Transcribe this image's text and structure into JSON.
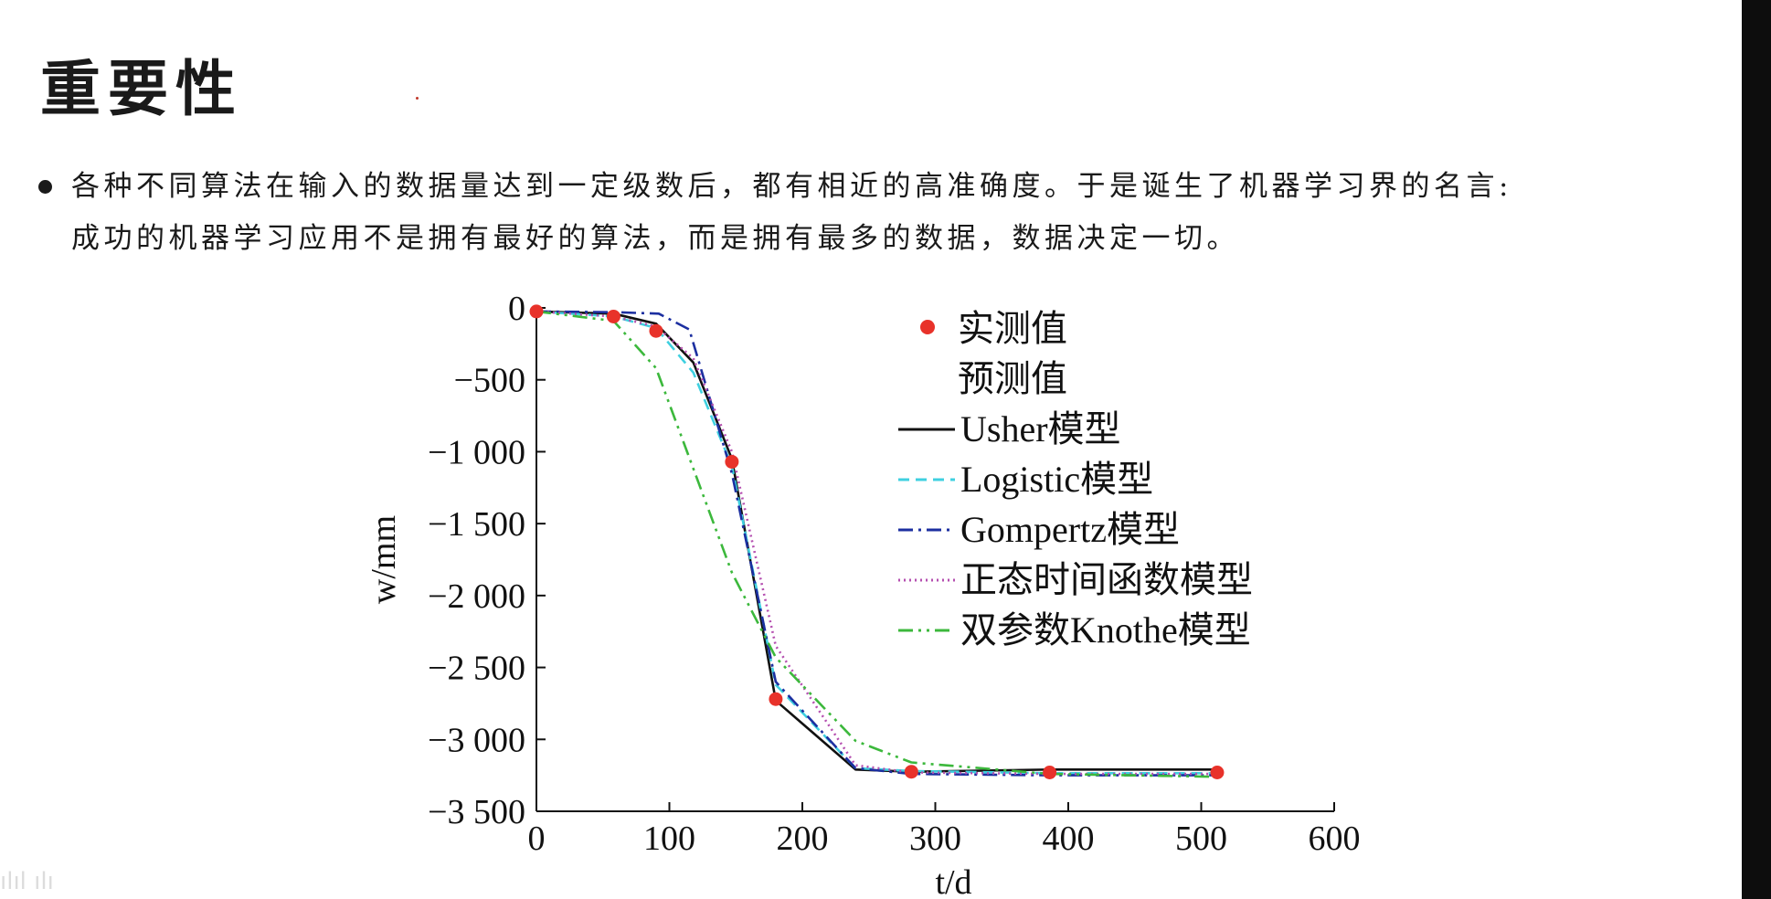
{
  "slide": {
    "title": "重要性",
    "bullet_line1": "各种不同算法在输入的数据量达到一定级数后，都有相近的高准确度。于是诞生了机器学习界的名言:",
    "bullet_line2": "成功的机器学习应用不是拥有最好的算法，而是拥有最多的数据，数据决定一切。"
  },
  "chart_data": {
    "type": "line",
    "xlabel": "t/d",
    "ylabel": "w/mm",
    "xlim": [
      0,
      600
    ],
    "ylim": [
      -3500,
      0
    ],
    "x_ticks": [
      0,
      100,
      200,
      300,
      400,
      500,
      600
    ],
    "y_ticks": [
      0,
      -500,
      -1000,
      -1500,
      -2000,
      -2500,
      -3000,
      -3500
    ],
    "x_tick_labels": [
      "0",
      "100",
      "200",
      "300",
      "400",
      "500",
      "600"
    ],
    "y_tick_labels": [
      "0",
      "−500",
      "−1 000",
      "−1 500",
      "−2 000",
      "−2 500",
      "−3 000",
      "−3 500"
    ],
    "grid": false,
    "legend_position": "top-right",
    "measured": {
      "name": "实测值",
      "color": "#e8322a",
      "x": [
        0,
        58,
        90,
        147,
        180,
        282,
        386,
        512
      ],
      "y": [
        -25,
        -60,
        -160,
        -1070,
        -2720,
        -3225,
        -3230,
        -3230
      ]
    },
    "predicted_header": "预测值",
    "series": [
      {
        "name": "Usher模型",
        "color": "#111111",
        "dash": "solid",
        "x": [
          0,
          58,
          90,
          118,
          147,
          180,
          240,
          282,
          386,
          512
        ],
        "y": [
          -25,
          -40,
          -110,
          -380,
          -1050,
          -2730,
          -3210,
          -3225,
          -3210,
          -3210
        ]
      },
      {
        "name": "Logistic模型",
        "color": "#3fd0e0",
        "dash": "dashed",
        "x": [
          0,
          58,
          90,
          118,
          147,
          180,
          240,
          282,
          386,
          512
        ],
        "y": [
          -25,
          -60,
          -140,
          -450,
          -1100,
          -2620,
          -3200,
          -3220,
          -3235,
          -3235
        ]
      },
      {
        "name": "Gompertz模型",
        "color": "#1c2fa0",
        "dash": "dashdot",
        "x": [
          0,
          58,
          92,
          115,
          147,
          180,
          240,
          282,
          386,
          512
        ],
        "y": [
          -25,
          -30,
          -40,
          -150,
          -1150,
          -2600,
          -3200,
          -3240,
          -3250,
          -3250
        ]
      },
      {
        "name": "正态时间函数模型",
        "color": "#b54fb0",
        "dash": "dotted",
        "x": [
          0,
          58,
          90,
          118,
          147,
          180,
          240,
          282,
          386,
          512
        ],
        "y": [
          -25,
          -60,
          -130,
          -350,
          -1000,
          -2350,
          -3180,
          -3230,
          -3240,
          -3240
        ]
      },
      {
        "name": "双参数Knothe模型",
        "color": "#3cb83c",
        "dash": "dashdotdot",
        "x": [
          0,
          58,
          90,
          147,
          180,
          240,
          282,
          386,
          512
        ],
        "y": [
          -25,
          -90,
          -420,
          -1840,
          -2430,
          -3010,
          -3160,
          -3240,
          -3260
        ]
      }
    ]
  },
  "watermark": "ılıl ılı"
}
